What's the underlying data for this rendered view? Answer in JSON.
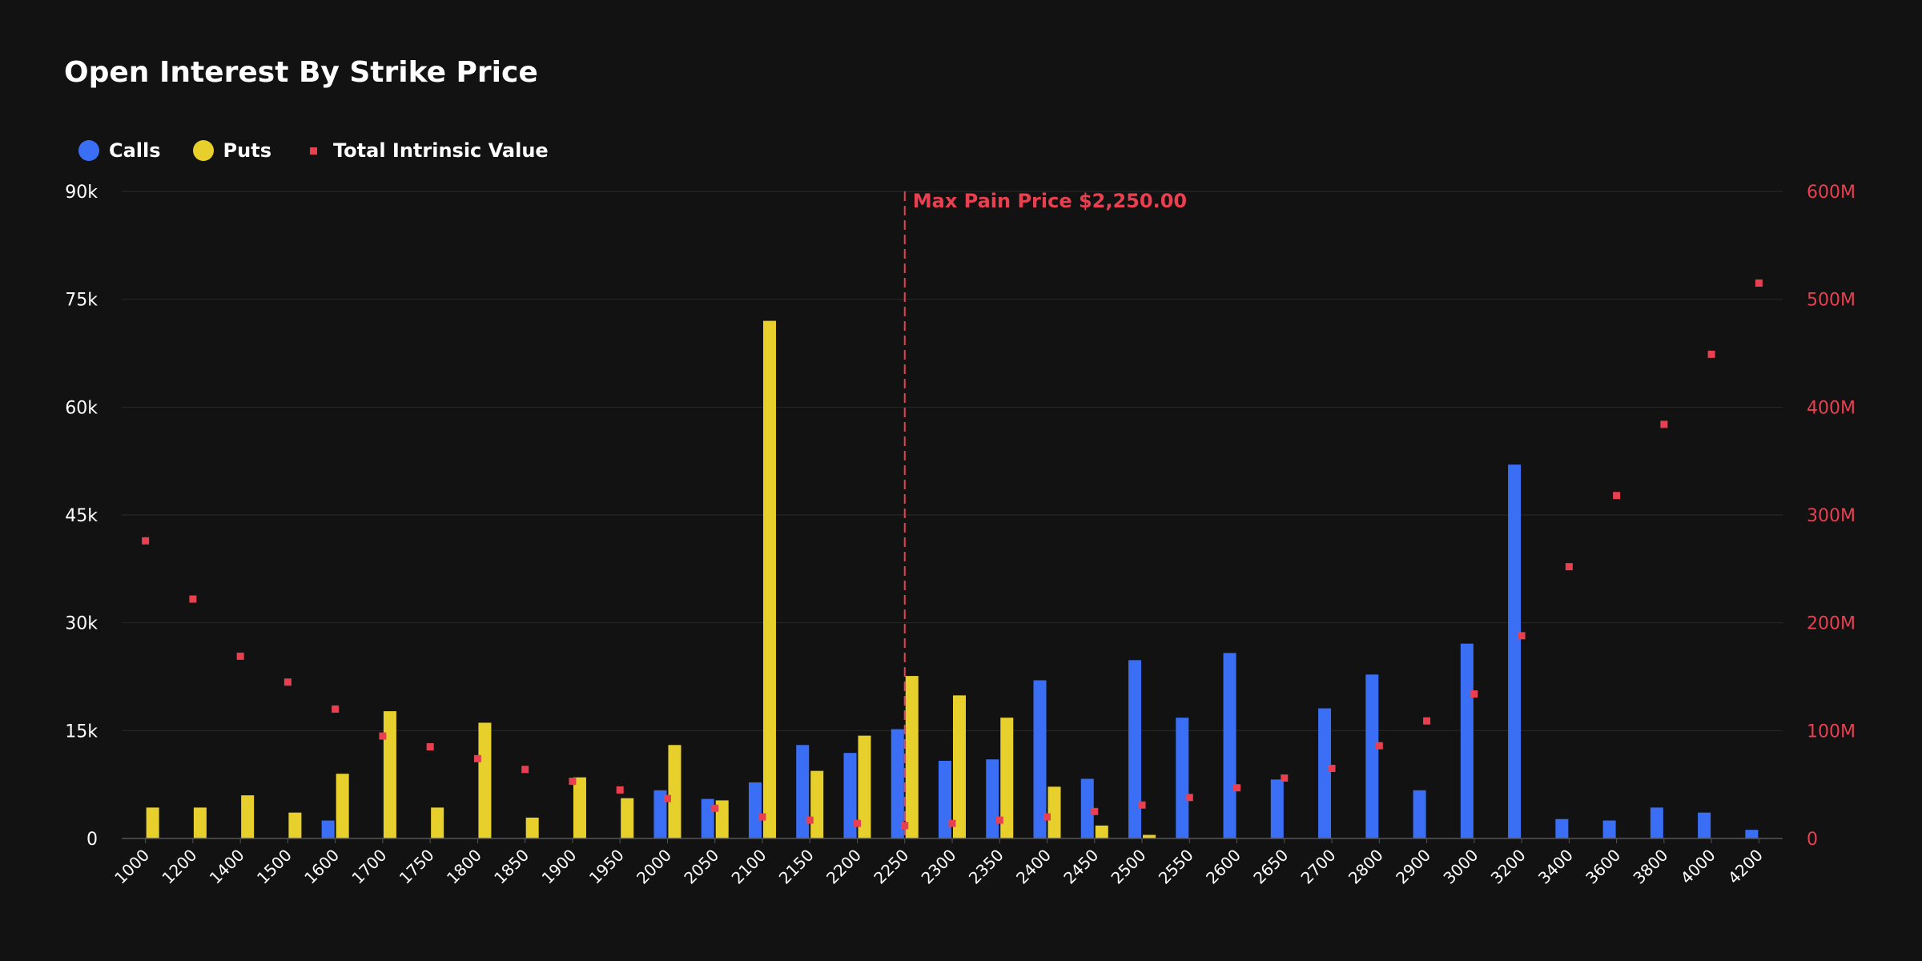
{
  "chart_data": {
    "type": "bar",
    "title": "Open Interest By Strike Price",
    "categories": [
      "1000",
      "1200",
      "1400",
      "1500",
      "1600",
      "1700",
      "1750",
      "1800",
      "1850",
      "1900",
      "1950",
      "2000",
      "2050",
      "2100",
      "2150",
      "2200",
      "2250",
      "2300",
      "2350",
      "2400",
      "2450",
      "2500",
      "2550",
      "2600",
      "2650",
      "2700",
      "2800",
      "2900",
      "3000",
      "3200",
      "3400",
      "3600",
      "3800",
      "4000",
      "4200"
    ],
    "series": [
      {
        "name": "Calls",
        "kind": "bar",
        "axis": "left",
        "color": "#3a6ff5",
        "values": [
          0,
          0,
          0,
          0,
          2500,
          0,
          0,
          0,
          0,
          0,
          0,
          6700,
          5500,
          7800,
          13000,
          11900,
          15200,
          10800,
          11000,
          22000,
          8300,
          24800,
          16800,
          25800,
          8200,
          18100,
          22800,
          6700,
          27100,
          52000,
          2700,
          2500,
          4300,
          3600,
          1200
        ]
      },
      {
        "name": "Puts",
        "kind": "bar",
        "axis": "left",
        "color": "#e8d02c",
        "values": [
          4300,
          4300,
          6000,
          3600,
          9000,
          17700,
          4300,
          16100,
          2900,
          8500,
          5600,
          13000,
          5300,
          72000,
          9400,
          14300,
          22600,
          19900,
          16800,
          7200,
          1800,
          500,
          0,
          0,
          0,
          0,
          0,
          0,
          0,
          0,
          0,
          0,
          0,
          0,
          0
        ]
      },
      {
        "name": "Total Intrinsic Value",
        "kind": "scatter",
        "axis": "right",
        "color": "#e84050",
        "values": [
          276000000,
          222000000,
          169000000,
          145000000,
          120000000,
          95000000,
          85000000,
          74000000,
          64000000,
          53000000,
          45000000,
          37000000,
          28000000,
          20000000,
          17000000,
          14000000,
          12000000,
          14000000,
          17000000,
          20000000,
          25000000,
          31000000,
          38000000,
          47000000,
          56000000,
          65000000,
          86000000,
          109000000,
          134000000,
          188000000,
          252000000,
          318000000,
          384000000,
          449000000,
          515000000
        ]
      }
    ],
    "y_left": {
      "min": 0,
      "max": 90000,
      "ticks": [
        0,
        15000,
        30000,
        45000,
        60000,
        75000,
        90000
      ],
      "tick_labels": [
        "0",
        "15k",
        "30k",
        "45k",
        "60k",
        "75k",
        "90k"
      ]
    },
    "y_right": {
      "min": 0,
      "max": 600000000,
      "ticks": [
        0,
        100000000,
        200000000,
        300000000,
        400000000,
        500000000,
        600000000
      ],
      "tick_labels": [
        "0",
        "100M",
        "200M",
        "300M",
        "400M",
        "500M",
        "600M"
      ],
      "color": "#e84050"
    },
    "annotation": {
      "category": "2250",
      "label": "Max Pain Price $2,250.00",
      "color": "#e84050"
    },
    "grid": true,
    "legend_position": "top-left",
    "background": "#121212"
  }
}
